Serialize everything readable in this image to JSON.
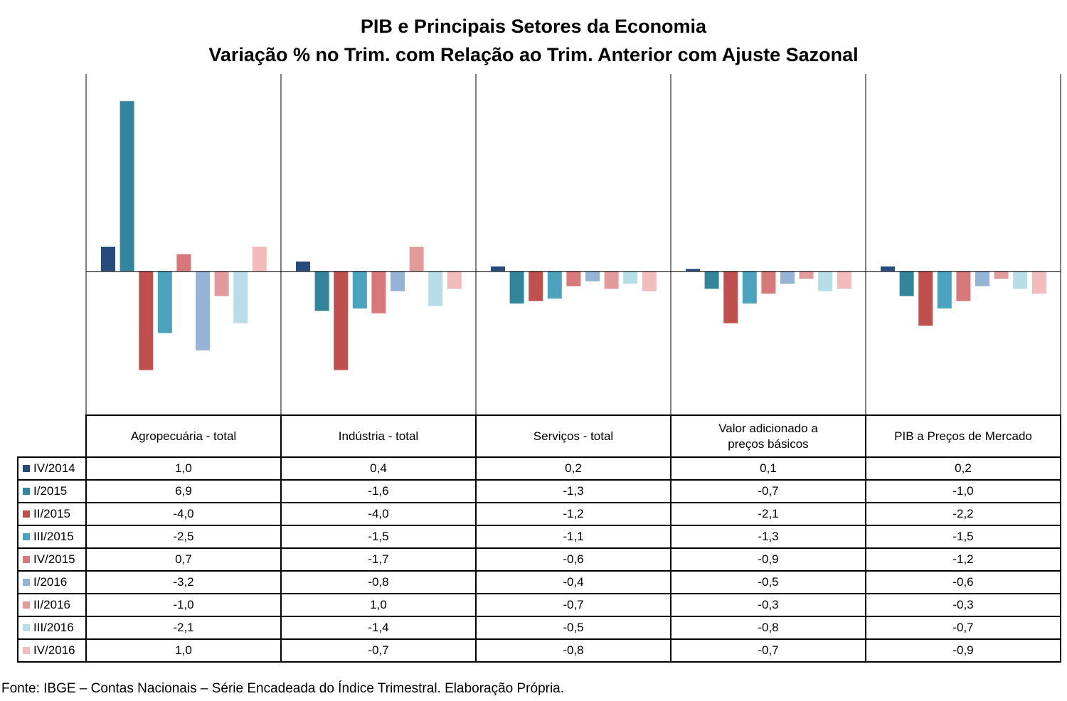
{
  "chart_data": {
    "type": "bar",
    "title": "PIB e Principais Setores da Economia",
    "subtitle": "Variação % no Trim. com Relação ao Trim. Anterior com Ajuste Sazonal",
    "categories": [
      "Agropecuária - total",
      "Indústria - total",
      "Serviços - total",
      "Valor adicionado a preços básicos",
      "PIB a Preços de Mercado"
    ],
    "series": [
      {
        "name": "IV/2014",
        "color": "#264c7e",
        "values": [
          1.0,
          0.4,
          0.2,
          0.1,
          0.2
        ],
        "labels": [
          "1,0",
          "0,4",
          "0,2",
          "0,1",
          "0,2"
        ]
      },
      {
        "name": "I/2015",
        "color": "#31859c",
        "values": [
          6.9,
          -1.6,
          -1.3,
          -0.7,
          -1.0
        ],
        "labels": [
          "6,9",
          "-1,6",
          "-1,3",
          "-0,7",
          "-1,0"
        ]
      },
      {
        "name": "II/2015",
        "color": "#c0504d",
        "values": [
          -4.0,
          -4.0,
          -1.2,
          -2.1,
          -2.2
        ],
        "labels": [
          "-4,0",
          "-4,0",
          "-1,2",
          "-2,1",
          "-2,2"
        ]
      },
      {
        "name": "III/2015",
        "color": "#4ba3bd",
        "values": [
          -2.5,
          -1.5,
          -1.1,
          -1.3,
          -1.5
        ],
        "labels": [
          "-2,5",
          "-1,5",
          "-1,1",
          "-1,3",
          "-1,5"
        ]
      },
      {
        "name": "IV/2015",
        "color": "#d9787a",
        "values": [
          0.7,
          -1.7,
          -0.6,
          -0.9,
          -1.2
        ],
        "labels": [
          "0,7",
          "-1,7",
          "-0,6",
          "-0,9",
          "-1,2"
        ]
      },
      {
        "name": "I/2016",
        "color": "#95b3d7",
        "values": [
          -3.2,
          -0.8,
          -0.4,
          -0.5,
          -0.6
        ],
        "labels": [
          "-3,2",
          "-0,8",
          "-0,4",
          "-0,5",
          "-0,6"
        ]
      },
      {
        "name": "II/2016",
        "color": "#e39a9a",
        "values": [
          -1.0,
          1.0,
          -0.7,
          -0.3,
          -0.3
        ],
        "labels": [
          "-1,0",
          "1,0",
          "-0,7",
          "-0,3",
          "-0,3"
        ]
      },
      {
        "name": "III/2016",
        "color": "#b7dee8",
        "values": [
          -2.1,
          -1.4,
          -0.5,
          -0.8,
          -0.7
        ],
        "labels": [
          "-2,1",
          "-1,4",
          "-0,5",
          "-0,8",
          "-0,7"
        ]
      },
      {
        "name": "IV/2016",
        "color": "#f2bcbc",
        "values": [
          1.0,
          -0.7,
          -0.8,
          -0.7,
          -0.9
        ],
        "labels": [
          "1,0",
          "-0,7",
          "-0,8",
          "-0,7",
          "-0,9"
        ]
      }
    ],
    "ylim": [
      -5.8,
      8.0
    ],
    "grid": false,
    "legend": "data-table"
  },
  "footnote": "Fonte: IBGE – Contas Nacionais – Série Encadeada do Índice Trimestral. Elaboração Própria."
}
